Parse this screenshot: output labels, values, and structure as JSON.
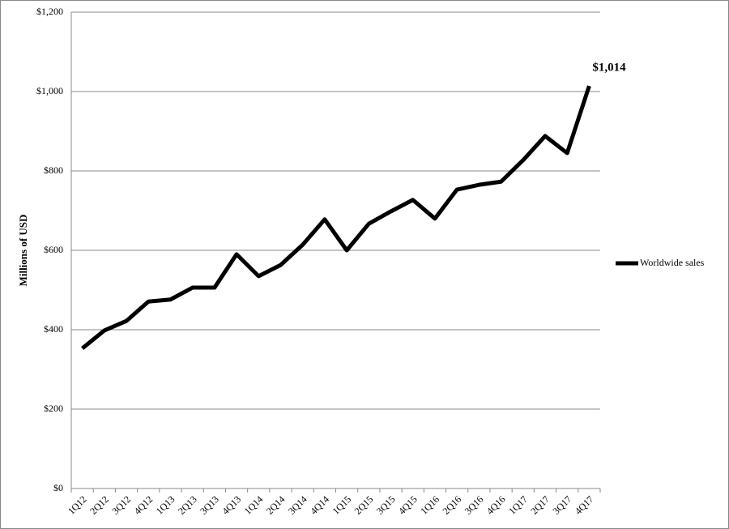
{
  "chart_data": {
    "type": "line",
    "y_label": "Millions of USD",
    "categories": [
      "1Q12",
      "2Q12",
      "3Q12",
      "4Q12",
      "1Q13",
      "2Q13",
      "3Q13",
      "4Q13",
      "1Q14",
      "2Q14",
      "3Q14",
      "4Q14",
      "1Q15",
      "2Q15",
      "3Q15",
      "4Q15",
      "1Q16",
      "2Q16",
      "3Q16",
      "4Q16",
      "1Q17",
      "2Q17",
      "3Q17",
      "4Q17"
    ],
    "series": [
      {
        "name": "Worldwide sales",
        "color": "#000000",
        "values": [
          353,
          398,
          422,
          471,
          476,
          506,
          506,
          590,
          535,
          563,
          614,
          678,
          600,
          667,
          698,
          727,
          680,
          753,
          765,
          773,
          827,
          888,
          845,
          1014
        ],
        "value_labels": [
          null,
          null,
          null,
          null,
          null,
          null,
          null,
          null,
          null,
          null,
          null,
          null,
          null,
          null,
          null,
          null,
          null,
          null,
          null,
          null,
          null,
          null,
          null,
          "$1,014"
        ]
      }
    ],
    "ylim": [
      0,
      1200
    ],
    "yticks": [
      {
        "value": 0,
        "label": "$0"
      },
      {
        "value": 200,
        "label": "$200"
      },
      {
        "value": 400,
        "label": "$400"
      },
      {
        "value": 600,
        "label": "$600"
      },
      {
        "value": 800,
        "label": "$800"
      },
      {
        "value": 1000,
        "label": "$1,000"
      },
      {
        "value": 1200,
        "label": "$1,200"
      }
    ],
    "grid": true,
    "legend": "right"
  }
}
